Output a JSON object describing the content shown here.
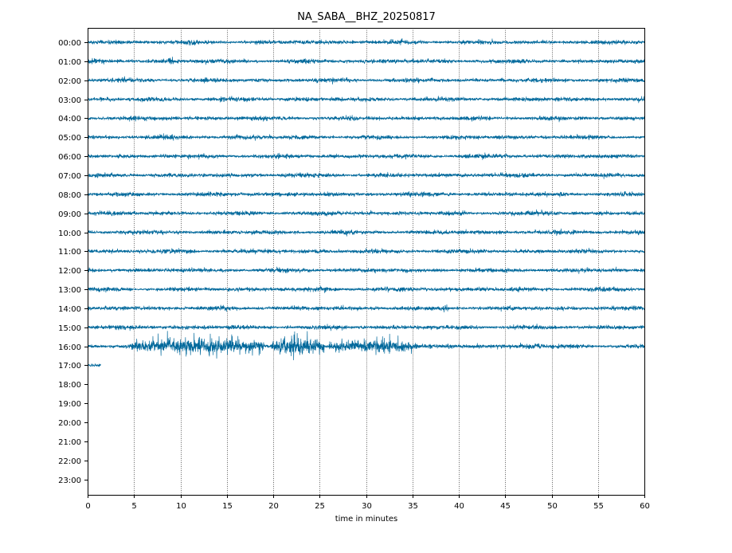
{
  "chart_data": {
    "type": "line",
    "title": "NA_SABA__BHZ_20250817",
    "xlabel": "time in minutes",
    "ylabel": "",
    "xlim": [
      0,
      60
    ],
    "x_ticks": [
      0,
      5,
      10,
      15,
      20,
      25,
      30,
      35,
      40,
      45,
      50,
      55,
      60
    ],
    "x_tick_labels": [
      "0",
      "5",
      "10",
      "15",
      "20",
      "25",
      "30",
      "35",
      "40",
      "45",
      "50",
      "55",
      "60"
    ],
    "vertical_grid": true,
    "grid_style": "dotted",
    "row_labels": [
      "00:00",
      "01:00",
      "02:00",
      "03:00",
      "04:00",
      "05:00",
      "06:00",
      "07:00",
      "08:00",
      "09:00",
      "10:00",
      "11:00",
      "12:00",
      "13:00",
      "14:00",
      "15:00",
      "16:00",
      "17:00",
      "18:00",
      "19:00",
      "20:00",
      "21:00",
      "22:00",
      "23:00"
    ],
    "trace_color": "#00689b",
    "trace_duration_minutes": [
      60,
      60,
      60,
      60,
      60,
      60,
      60,
      60,
      60,
      60,
      60,
      60,
      60,
      60,
      60,
      60,
      60,
      1.4,
      0,
      0,
      0,
      0,
      0,
      0
    ],
    "events": [
      {
        "hour": "01:00",
        "start_minute": 8.0,
        "end_minute": 9.5,
        "relative_amplitude": 1.6
      },
      {
        "hour": "14:00",
        "start_minute": 38.0,
        "end_minute": 39.0,
        "relative_amplitude": 1.5
      },
      {
        "hour": "16:00",
        "start_minute": 4.7,
        "end_minute": 19.0,
        "relative_amplitude": 3.5
      },
      {
        "hour": "16:00",
        "start_minute": 19.8,
        "end_minute": 25.5,
        "relative_amplitude": 4.0
      },
      {
        "hour": "16:00",
        "start_minute": 26.0,
        "end_minute": 35.5,
        "relative_amplitude": 3.0
      },
      {
        "hour": "16:00",
        "start_minute": 46.0,
        "end_minute": 50.0,
        "relative_amplitude": 1.4
      }
    ]
  }
}
